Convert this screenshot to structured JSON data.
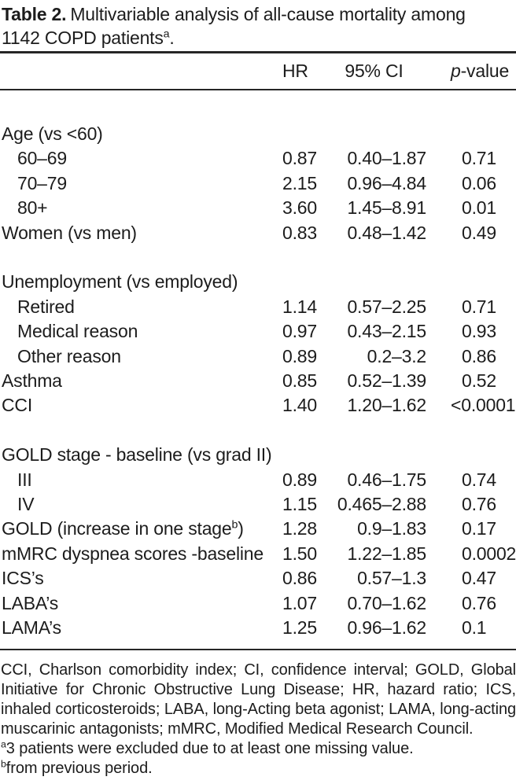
{
  "page": {
    "background": "#ffffff",
    "text_color": "#1c1c1c",
    "rule_color": "#262626"
  },
  "title": {
    "label_bold": "Table 2.",
    "line1_rest": "Multivariable analysis of all-cause mortality among",
    "line2_pre": "1142 COPD patients",
    "line2_sup": "a",
    "line2_post": "."
  },
  "table": {
    "columns": {
      "hr": "HR",
      "ci": "95% CI",
      "p_italic": "p",
      "p_rest": "-value"
    },
    "rows": [
      {
        "type": "section",
        "label": "Age (vs <60)"
      },
      {
        "type": "data",
        "indent": true,
        "label": "60–69",
        "hr": "0.87",
        "ci": "0.40–1.87",
        "p": "0.71"
      },
      {
        "type": "data",
        "indent": true,
        "label": "70–79",
        "hr": "2.15",
        "ci": "0.96–4.84",
        "p": "0.06"
      },
      {
        "type": "data",
        "indent": true,
        "label": "80+",
        "hr": "3.60",
        "ci": "1.45–8.91",
        "p": "0.01"
      },
      {
        "type": "data",
        "label": "Women (vs men)",
        "hr": "0.83",
        "ci": "0.48–1.42",
        "p": "0.49"
      },
      {
        "type": "spacer"
      },
      {
        "type": "section",
        "label": "Unemployment (vs employed)"
      },
      {
        "type": "data",
        "indent": true,
        "label": "Retired",
        "hr": "1.14",
        "ci": "0.57–2.25",
        "p": "0.71"
      },
      {
        "type": "data",
        "indent": true,
        "label": "Medical reason",
        "hr": "0.97",
        "ci": "0.43–2.15",
        "p": "0.93"
      },
      {
        "type": "data",
        "indent": true,
        "label": "Other reason",
        "hr": "0.89",
        "ci": "0.2–3.2",
        "p": "0.86"
      },
      {
        "type": "data",
        "label": "Asthma",
        "hr": "0.85",
        "ci": "0.52–1.39",
        "p": "0.52"
      },
      {
        "type": "data",
        "label": "CCI",
        "hr": "1.40",
        "ci": "1.20–1.62",
        "p": "<0.0001"
      },
      {
        "type": "spacer"
      },
      {
        "type": "section",
        "label": "GOLD stage - baseline (vs grad II)"
      },
      {
        "type": "data",
        "indent": true,
        "label": "III",
        "hr": "0.89",
        "ci": "0.46–1.75",
        "p": "0.74"
      },
      {
        "type": "data",
        "indent": true,
        "label": "IV",
        "hr": "1.15",
        "ci": "0.465–2.88",
        "p": "0.76"
      },
      {
        "type": "data",
        "label": "GOLD (increase in one stage",
        "sup": "b",
        "post": ")",
        "hr": "1.28",
        "ci": "0.9–1.83",
        "p": "0.17"
      },
      {
        "type": "data",
        "label": "mMRC dyspnea scores -baseline",
        "hr": "1.50",
        "ci": "1.22–1.85",
        "p": "0.0002"
      },
      {
        "type": "data",
        "label": "ICS’s",
        "hr": "0.86",
        "ci": "0.57–1.3",
        "p": "0.47"
      },
      {
        "type": "data",
        "label": "LABA’s",
        "hr": "1.07",
        "ci": "0.70–1.62",
        "p": "0.76"
      },
      {
        "type": "data",
        "label": "LAMA’s",
        "hr": "1.25",
        "ci": "0.96–1.62",
        "p": "0.1"
      }
    ]
  },
  "footnotes": {
    "abbreviations": "CCI, Charlson comorbidity index; CI, confidence interval; GOLD, Global Initiative for Chronic Obstructive Lung Disease; HR, hazard ratio; ICS, inhaled corticosteroids; LABA, long-Acting beta agonist; LAMA, long-acting muscarinic antagonists; mMRC, Modified Medical Research Council.",
    "note_a_sup": "a",
    "note_a_text": "3 patients were excluded due to at least one missing value.",
    "note_b_sup": "b",
    "note_b_text": "from previous period."
  }
}
